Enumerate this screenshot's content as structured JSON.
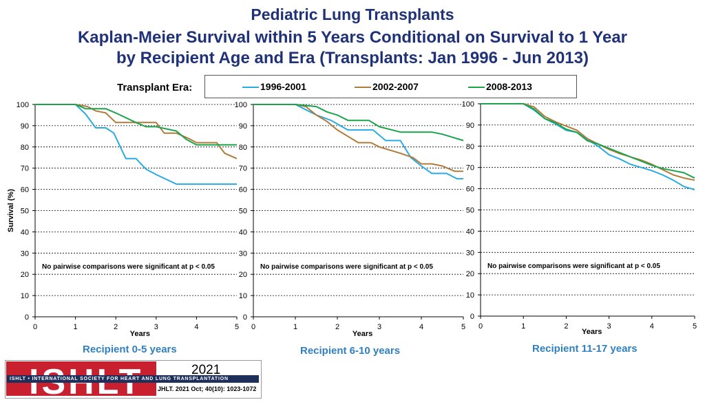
{
  "title": {
    "line1": "Pediatric Lung Transplants",
    "line2": "Kaplan-Meier Survival within 5 Years Conditional on Survival to 1 Year",
    "line3": "by Recipient Age and Era (Transplants: Jan 1996 - Jun 2013)"
  },
  "legend": {
    "label": "Transplant Era:",
    "items": [
      {
        "name": "1996-2001",
        "color": "#29abe2"
      },
      {
        "name": "2002-2007",
        "color": "#b07a3a"
      },
      {
        "name": "2008-2013",
        "color": "#1aa34a"
      }
    ]
  },
  "footer": {
    "logo_text": "ISHLT",
    "org_name": "ISHLT • INTERNATIONAL SOCIETY FOR HEART AND LUNG TRANSPLANTATION",
    "year": "2021",
    "reference": "JHLT. 2021 Oct; 40(10): 1023-1072"
  },
  "chart_data": [
    {
      "type": "line",
      "title": "Recipient 0-5 years",
      "xlabel": "Years",
      "ylabel": "Survival (%)",
      "xlim": [
        0,
        5
      ],
      "ylim": [
        0,
        100
      ],
      "xticks": [
        0,
        1,
        2,
        3,
        4,
        5
      ],
      "yticks": [
        0,
        10,
        20,
        30,
        40,
        50,
        60,
        70,
        80,
        90,
        100
      ],
      "annotation": "No pairwise comparisons were significant at p < 0.05",
      "series": [
        {
          "name": "1996-2001",
          "x": [
            0,
            1,
            1.25,
            1.5,
            1.75,
            1.95,
            2.25,
            2.5,
            2.75,
            3.0,
            3.5,
            4.0,
            4.5,
            5.0
          ],
          "y": [
            100,
            100,
            95.5,
            89,
            89,
            86.5,
            74.5,
            74.5,
            69.5,
            67,
            62.5,
            62.5,
            62.5,
            62.5
          ]
        },
        {
          "name": "2002-2007",
          "x": [
            0,
            1,
            1.3,
            1.5,
            1.75,
            2.0,
            2.5,
            3.0,
            3.2,
            3.5,
            3.8,
            4.0,
            4.5,
            4.7,
            5.0
          ],
          "y": [
            100,
            100,
            99,
            97,
            96,
            91.5,
            91.5,
            91.5,
            86.5,
            86.5,
            84,
            82,
            82,
            77,
            74.5
          ]
        },
        {
          "name": "2008-2013",
          "x": [
            0,
            1,
            1.25,
            1.75,
            2.0,
            2.5,
            2.75,
            3.0,
            3.5,
            3.75,
            4.0,
            4.5,
            5.0
          ],
          "y": [
            100,
            100,
            98,
            98,
            96,
            91.5,
            89.5,
            89.5,
            87.5,
            83.5,
            81,
            81,
            81
          ]
        }
      ]
    },
    {
      "type": "line",
      "title": "Recipient 6-10 years",
      "xlabel": "Years",
      "ylabel": "",
      "xlim": [
        0,
        5
      ],
      "ylim": [
        0,
        100
      ],
      "xticks": [
        0,
        1,
        2,
        3,
        4,
        5
      ],
      "yticks": [
        0,
        10,
        20,
        30,
        40,
        50,
        60,
        70,
        80,
        90,
        100
      ],
      "annotation": "No pairwise comparisons were significant at p < 0.05",
      "series": [
        {
          "name": "1996-2001",
          "x": [
            0,
            1,
            1.25,
            1.5,
            1.85,
            2.25,
            2.5,
            2.85,
            3.15,
            3.5,
            3.75,
            4.0,
            4.25,
            4.6,
            4.85,
            5.0
          ],
          "y": [
            100,
            100,
            97.5,
            95,
            92.5,
            88,
            88,
            88,
            83,
            83,
            75,
            71,
            67.5,
            67.5,
            65,
            65
          ]
        },
        {
          "name": "2002-2007",
          "x": [
            0,
            1,
            1.25,
            1.5,
            1.75,
            2.0,
            2.5,
            2.8,
            3.0,
            3.5,
            3.8,
            4.0,
            4.25,
            4.5,
            4.8,
            5.0
          ],
          "y": [
            100,
            100,
            99,
            95,
            92,
            88,
            82,
            82,
            80,
            77,
            75,
            72,
            72,
            71,
            68.5,
            68.5
          ]
        },
        {
          "name": "2008-2013",
          "x": [
            0,
            1,
            1.5,
            1.75,
            2.0,
            2.25,
            2.75,
            3.0,
            3.5,
            4.0,
            4.25,
            4.5,
            4.75,
            5.0
          ],
          "y": [
            100,
            100,
            99,
            96.5,
            95,
            92.5,
            92.5,
            89.5,
            87,
            87,
            87,
            86,
            84.5,
            83
          ]
        }
      ]
    },
    {
      "type": "line",
      "title": "Recipient 11-17 years",
      "xlabel": "Years",
      "ylabel": "",
      "xlim": [
        0,
        5
      ],
      "ylim": [
        0,
        100
      ],
      "xticks": [
        0,
        1,
        2,
        3,
        4,
        5
      ],
      "yticks": [
        0,
        10,
        20,
        30,
        40,
        50,
        60,
        70,
        80,
        90,
        100
      ],
      "annotation": "No pairwise comparisons were significant at p < 0.05",
      "series": [
        {
          "name": "1996-2001",
          "x": [
            0,
            1,
            1.25,
            1.5,
            1.75,
            2.0,
            2.25,
            2.5,
            2.75,
            3.0,
            3.25,
            3.5,
            3.75,
            4.0,
            4.25,
            4.5,
            4.75,
            5.0
          ],
          "y": [
            100,
            100,
            97,
            93,
            90.5,
            87.5,
            86.5,
            83,
            80,
            76,
            74,
            71.5,
            70,
            68.5,
            66.5,
            64,
            61,
            59.5
          ]
        },
        {
          "name": "2002-2007",
          "x": [
            0,
            1,
            1.25,
            1.5,
            1.75,
            2.0,
            2.25,
            2.5,
            2.75,
            3.0,
            3.25,
            3.5,
            3.75,
            4.0,
            4.25,
            4.5,
            4.75,
            5.0
          ],
          "y": [
            100,
            100,
            98.5,
            94,
            91.5,
            89.5,
            87.5,
            83.5,
            81,
            78.5,
            76.5,
            75,
            73.5,
            71.5,
            69,
            66.5,
            65,
            64
          ]
        },
        {
          "name": "2008-2013",
          "x": [
            0,
            1,
            1.25,
            1.5,
            1.75,
            2.0,
            2.25,
            2.5,
            2.75,
            3.0,
            3.25,
            3.5,
            3.75,
            4.0,
            4.25,
            4.5,
            4.75,
            5.0
          ],
          "y": [
            100,
            100,
            97.5,
            93,
            91,
            88,
            86.5,
            82.5,
            81,
            79,
            77,
            75,
            73,
            71,
            69.5,
            68.5,
            67.5,
            65
          ]
        }
      ]
    }
  ]
}
